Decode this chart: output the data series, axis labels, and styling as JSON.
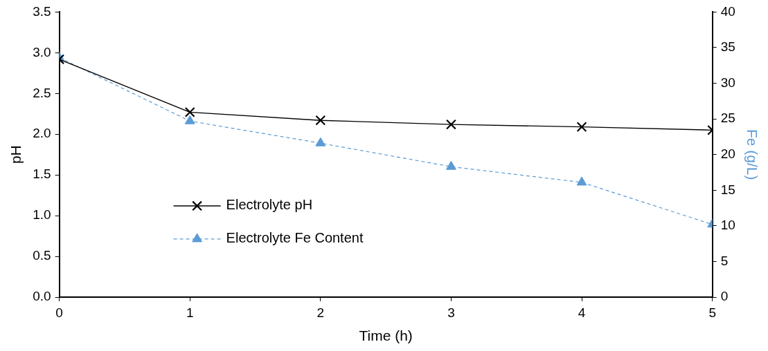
{
  "chart_data": {
    "type": "line",
    "xlabel": "Time (h)",
    "ylabel": "pH",
    "y2label": "Fe (g/L)",
    "x": [
      0,
      1,
      2,
      3,
      4,
      5
    ],
    "series": [
      {
        "name": "Electrolyte pH",
        "color": "#000000",
        "marker": "cross",
        "line_style": "solid",
        "values": [
          2.92,
          2.27,
          2.17,
          2.12,
          2.09,
          2.05
        ]
      },
      {
        "name": "Electrolyte Fe Content",
        "color": "#5b9bd5",
        "marker": "triangle",
        "line_style": "dashed",
        "axis": "y2",
        "values": [
          33.6,
          24.7,
          21.6,
          18.3,
          16.1,
          10.2
        ]
      }
    ],
    "xlim": [
      0,
      5
    ],
    "xticks": [
      0,
      1,
      2,
      3,
      4,
      5
    ],
    "ylim": [
      0,
      3.5
    ],
    "yticks": [
      {
        "value": 0,
        "label": "0.0"
      },
      0.5,
      {
        "value": 1,
        "label": "1.0"
      },
      1.5,
      {
        "value": 2,
        "label": "2.0"
      },
      2.5,
      {
        "value": 3,
        "label": "3.0"
      },
      3.5
    ],
    "y2lim": [
      0,
      40
    ],
    "y2ticks": [
      0,
      5,
      10,
      15,
      20,
      25,
      30,
      35,
      40
    ],
    "grid": false,
    "legend": "left"
  }
}
